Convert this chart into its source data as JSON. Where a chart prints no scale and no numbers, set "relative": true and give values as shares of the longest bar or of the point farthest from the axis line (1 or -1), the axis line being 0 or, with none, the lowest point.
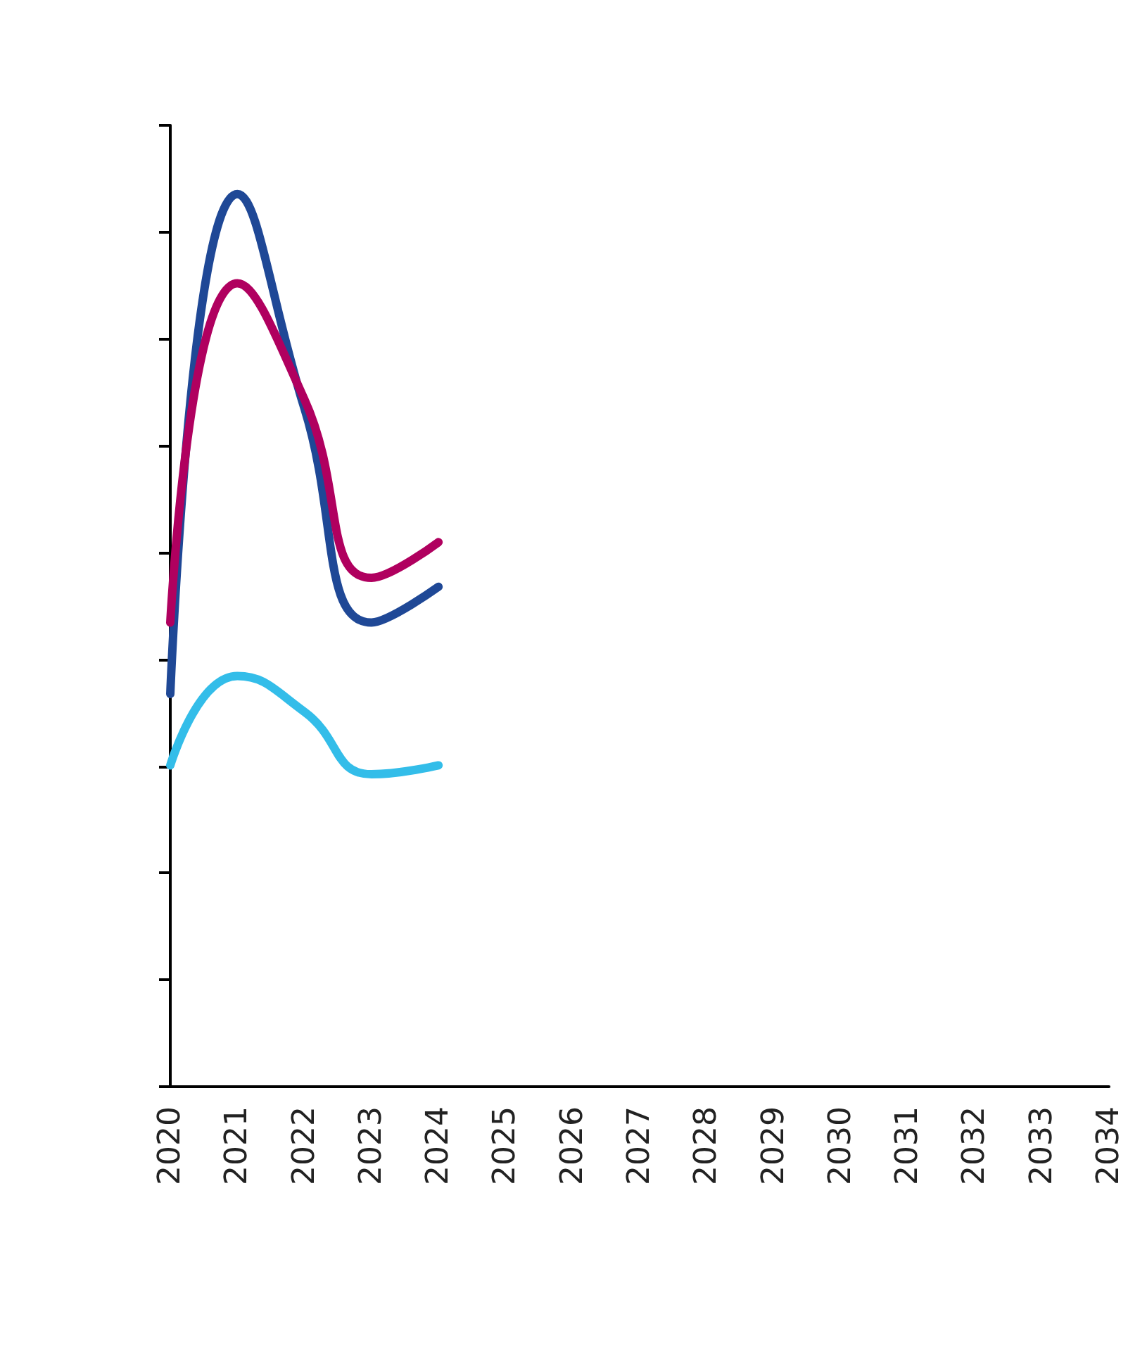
{
  "chart_data": {
    "type": "line",
    "relative": true,
    "categories": [
      "2020",
      "2021",
      "2022",
      "2023",
      "2024",
      "2025",
      "2026",
      "2027",
      "2028",
      "2029",
      "2030",
      "2031",
      "2032",
      "2033",
      "2034"
    ],
    "series": [
      {
        "color": "#1f4896",
        "values": [
          0.44,
          1,
          0.76,
          0.52,
          0.56,
          null,
          null,
          null,
          null,
          null,
          null,
          null,
          null,
          null,
          null
        ]
      },
      {
        "color": "#b0005f",
        "values": [
          0.52,
          0.9,
          0.77,
          0.57,
          0.61,
          null,
          null,
          null,
          null,
          null,
          null,
          null,
          null,
          null,
          null
        ]
      },
      {
        "color": "#33bde9",
        "values": [
          0.36,
          0.46,
          0.42,
          0.35,
          0.36,
          null,
          null,
          null,
          null,
          null,
          null,
          null,
          null,
          null,
          null
        ]
      }
    ],
    "marker": "none",
    "line_style": "solid",
    "grid": false
  }
}
